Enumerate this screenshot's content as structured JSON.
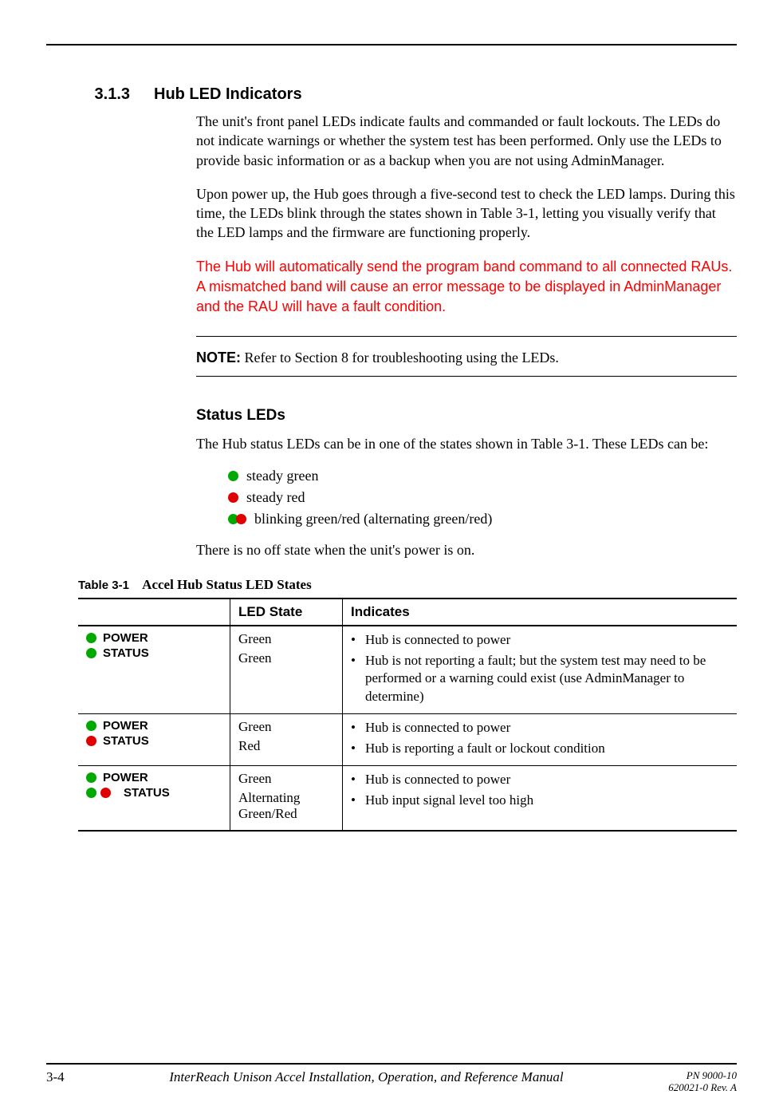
{
  "colors": {
    "green": "#00a800",
    "red": "#e00000",
    "redtext": "#ff0000",
    "rule": "#000000"
  },
  "section": {
    "number": "3.1.3",
    "title": "Hub LED Indicators"
  },
  "paragraphs": {
    "p1": "The unit's front panel LEDs indicate faults and commanded or fault lockouts. The LEDs do not indicate warnings or whether the system test has been performed. Only use the LEDs to provide basic information or as a backup when you are not using AdminManager.",
    "p2": "Upon power up, the Hub goes through a five-second test to check the LED lamps. During this time, the LEDs blink through the states shown in Table 3-1, letting you visually verify that the LED lamps and the firmware are functioning properly.",
    "red": "The Hub will automatically send the program band command to all connected RAUs. A mismatched band will cause an error message to be displayed in AdminManager and the RAU will have a fault condition.",
    "note_label": "NOTE:",
    "note_body": " Refer to Section 8 for troubleshooting using the LEDs.",
    "subhead": "Status LEDs",
    "p3": "The Hub status LEDs can be in one of the states shown in Table 3-1. These LEDs can be:",
    "p4": "There is no off state when the unit's power is on."
  },
  "led_states": {
    "steady_green": "steady green",
    "steady_red": "steady red",
    "blinking": "blinking green/red (alternating green/red)"
  },
  "table": {
    "caption_label": "Table 3-1",
    "caption_title": "Accel Hub Status LED States",
    "headers": {
      "col1": "",
      "col2": "LED State",
      "col3": "Indicates"
    },
    "rows": [
      {
        "labels": {
          "power": "POWER",
          "status": "STATUS"
        },
        "dot_power": "green",
        "dot_status": "green",
        "state1": "Green",
        "state2": "Green",
        "ind1": "Hub is connected to power",
        "ind2": "Hub is not reporting a fault; but the system test may need to be performed or a warning could exist (use AdminManager to determine)"
      },
      {
        "labels": {
          "power": "POWER",
          "status": "STATUS"
        },
        "dot_power": "green",
        "dot_status": "red",
        "state1": "Green",
        "state2": "Red",
        "ind1": "Hub is connected to power",
        "ind2": "Hub is reporting a fault or lockout condition"
      },
      {
        "labels": {
          "power": "POWER",
          "status": "STATUS"
        },
        "dot_power": "green",
        "dot_status": "pair",
        "state1": "Green",
        "state2": "Alternating Green/Red",
        "ind1": "Hub is connected to power",
        "ind2": "Hub input signal level too high"
      }
    ]
  },
  "footer": {
    "page": "3-4",
    "title": "InterReach Unison Accel Installation, Operation, and Reference Manual",
    "pn": "PN 9000-10",
    "rev": "620021-0 Rev. A"
  }
}
